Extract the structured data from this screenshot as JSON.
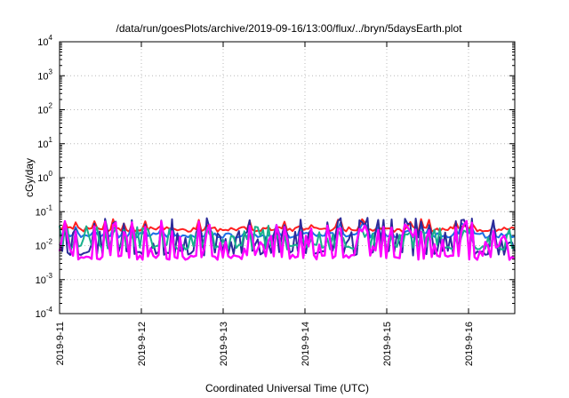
{
  "chart_data": {
    "type": "line",
    "title": "/data/run/goesPlots/archive/2019-09-16/13:00/flux/../bryn/5daysEarth.plot",
    "xlabel": "Coordinated Universal Time (UTC)",
    "ylabel": "cGy/day",
    "yscale": "log",
    "ylim": [
      0.0001,
      10000
    ],
    "y_ticks": [
      {
        "base": "10",
        "exp": "-4"
      },
      {
        "base": "10",
        "exp": "-3"
      },
      {
        "base": "10",
        "exp": "-2"
      },
      {
        "base": "10",
        "exp": "-1"
      },
      {
        "base": "10",
        "exp": "0"
      },
      {
        "base": "10",
        "exp": "1"
      },
      {
        "base": "10",
        "exp": "2"
      },
      {
        "base": "10",
        "exp": "3"
      },
      {
        "base": "10",
        "exp": "4"
      }
    ],
    "xlim": [
      "2019-9-11",
      "2019-9-16 13:00"
    ],
    "x_ticks": [
      "2019-9-11",
      "2019-9-12",
      "2019-9-13",
      "2019-9-14",
      "2019-9-15",
      "2019-9-16"
    ],
    "grid": true,
    "legend": "none",
    "series": [
      {
        "color": "#ff2020",
        "base": 0.03,
        "spike": 0.055
      },
      {
        "color": "#1e6fe6",
        "base": 0.02,
        "spike": 0.045
      },
      {
        "color": "#2c2c9a",
        "base": 0.006,
        "spike": 0.06
      },
      {
        "color": "#19b08c",
        "base": 0.009,
        "spike": 0.03
      },
      {
        "color": "#ff00ff",
        "base": 0.0045,
        "spike": 0.05
      }
    ]
  }
}
